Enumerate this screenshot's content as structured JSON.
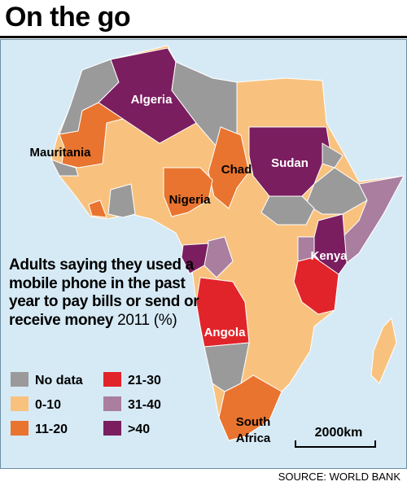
{
  "title": "On the go",
  "description": {
    "bold": "Adults saying they used a mobile phone in the past year to pay bills or send or receive money",
    "normal": "2011 (%)"
  },
  "legend": [
    {
      "label": "No data",
      "color": "#9a9a9a"
    },
    {
      "label": "0-10",
      "color": "#f8c27e"
    },
    {
      "label": "11-20",
      "color": "#e8742f"
    },
    {
      "label": "21-30",
      "color": "#e1242a"
    },
    {
      "label": "31-40",
      "color": "#a97e9f"
    },
    {
      "label": ">40",
      "color": "#7a1e60"
    }
  ],
  "map_labels": [
    "Algeria",
    "Mauritania",
    "Chad",
    "Sudan",
    "Nigeria",
    "Kenya",
    "Angola",
    "South Africa"
  ],
  "scale_label": "2000km",
  "source": "SOURCE: WORLD BANK"
}
